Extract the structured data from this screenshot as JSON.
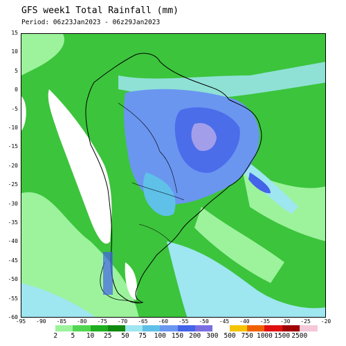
{
  "title": "GFS week1 Total Rainfall (mm)",
  "period": "Period: 06z23Jan2023 - 06z29Jan2023",
  "lat_ticks": [
    "15",
    "10",
    "5",
    "0",
    "-5",
    "-10",
    "-15",
    "-20",
    "-25",
    "-30",
    "-35",
    "-40",
    "-45",
    "-50",
    "-55",
    "-60"
  ],
  "lon_ticks": [
    "-95",
    "-90",
    "-85",
    "-80",
    "-75",
    "-70",
    "-65",
    "-60",
    "-55",
    "-50",
    "-45",
    "-40",
    "-35",
    "-30",
    "-25",
    "-20"
  ],
  "legend": {
    "labels": [
      "2",
      "5",
      "10",
      "25",
      "50",
      "75",
      "100",
      "150",
      "200",
      "300",
      "500",
      "750",
      "1000",
      "1500",
      "2500"
    ],
    "colors": [
      "#ffffff",
      "#9cf39c",
      "#52d652",
      "#1fae1f",
      "#0f8a0f",
      "#9ee6f0",
      "#5fc0e8",
      "#6a96f0",
      "#4363e8",
      "#7b6ee0",
      "#ffffff",
      "#f5c400",
      "#f06000",
      "#e01010",
      "#a00000",
      "#f4c8d8"
    ]
  }
}
